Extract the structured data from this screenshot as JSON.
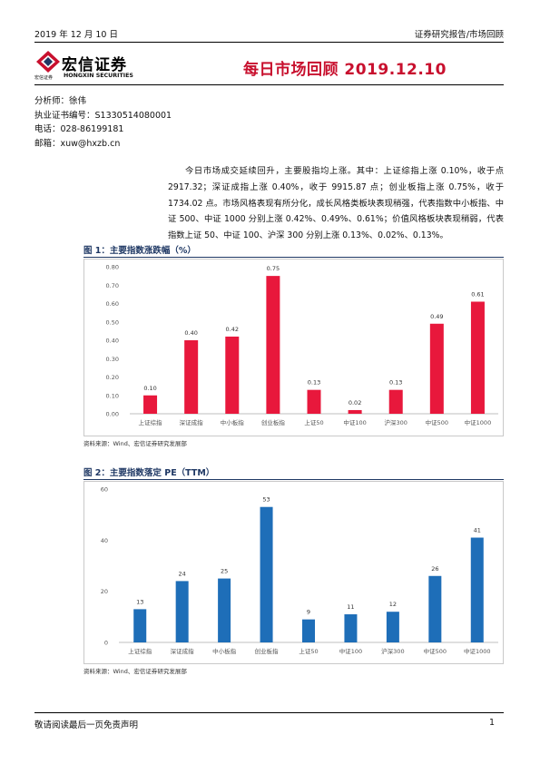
{
  "header": {
    "date": "2019 年 12 月 10 日",
    "breadcrumb": "证券研究报告/市场回顾"
  },
  "logo": {
    "brand": "宏信证券",
    "sub_cn": "宏信证券",
    "sub_en": "HONGXIN SECURITIES"
  },
  "report_title": "每日市场回顾 2019.12.10",
  "analyst": {
    "name_line": "分析师：徐伟",
    "license_line": "执业证书编号：S1330514080001",
    "phone_line": "电话：028-86199181",
    "email_line": "邮箱：xuw@hxzb.cn"
  },
  "summary": "今日市场成交延续回升，主要股指均上涨。其中：上证综指上涨 0.10%，收于点 2917.32；深证成指上涨 0.40%，收于 9915.87 点；创业板指上涨 0.75%，收于 1734.02 点。市场风格表现有所分化，成长风格类板块表现稍强，代表指数中小板指、中证 500、中证 1000 分别上涨 0.42%、0.49%、0.61%；价值风格板块表现稍弱，代表指数上证 50、中证 100、沪深 300 分别上涨 0.13%、0.02%、0.13%。",
  "figures": [
    {
      "title": "图 1：主要指数涨跌幅（%）",
      "source": "资料来源：Wind、宏信证券研究发展部",
      "color": "#e8183c",
      "chart_data": {
        "type": "bar",
        "title": "图 1：主要指数涨跌幅（%）",
        "categories": [
          "上证综指",
          "深证成指",
          "中小板指",
          "创业板指",
          "上证50",
          "中证100",
          "沪深300",
          "中证500",
          "中证1000"
        ],
        "values": [
          0.1,
          0.4,
          0.42,
          0.75,
          0.13,
          0.02,
          0.13,
          0.49,
          0.61
        ],
        "data_labels": [
          "0.10",
          "0.40",
          "0.42",
          "0.75",
          "0.13",
          "0.02",
          "0.13",
          "0.49",
          "0.61"
        ],
        "ylim": [
          0,
          0.8
        ],
        "yticks": [
          "0.00",
          "0.10",
          "0.20",
          "0.30",
          "0.40",
          "0.50",
          "0.60",
          "0.70",
          "0.80"
        ],
        "grid": false,
        "legend": "none"
      }
    },
    {
      "title": "图 2：主要指数落定 PE（TTM）",
      "source": "资料来源：Wind、宏信证券研究发展部",
      "color": "#1e6eb8",
      "chart_data": {
        "type": "bar",
        "title": "图 2：主要指数落定 PE（TTM）",
        "categories": [
          "上证综指",
          "深证成指",
          "中小板指",
          "创业板指",
          "上证50",
          "中证100",
          "沪深300",
          "中证500",
          "中证1000"
        ],
        "values": [
          13,
          24,
          25,
          53,
          9,
          11,
          12,
          26,
          41
        ],
        "data_labels": [
          "13",
          "24",
          "25",
          "53",
          "9",
          "11",
          "12",
          "26",
          "41"
        ],
        "ylim": [
          0,
          60
        ],
        "yticks": [
          "0",
          "20",
          "40",
          "60"
        ],
        "grid": false,
        "legend": "none"
      }
    }
  ],
  "footer": {
    "disclaimer": "敬请阅读最后一页免责声明",
    "page_number": "1"
  }
}
